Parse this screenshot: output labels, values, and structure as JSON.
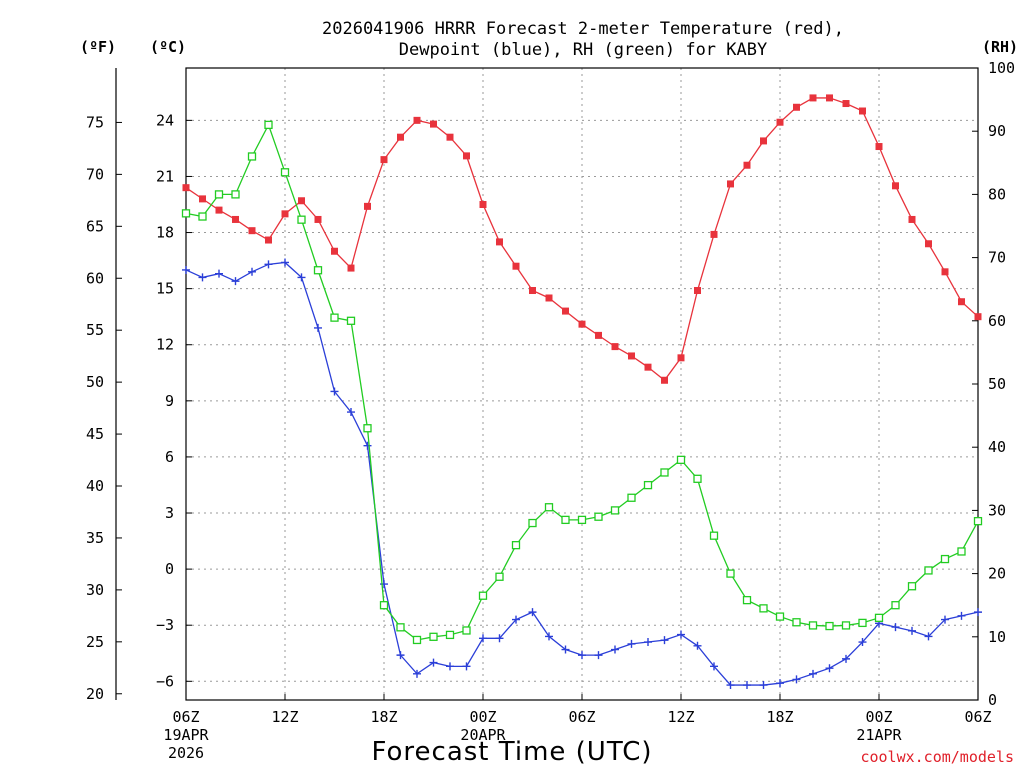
{
  "chart_data": {
    "type": "line",
    "title_line1": "2026041906 HRRR Forecast 2-meter Temperature (red),",
    "title_line2": "Dewpoint (blue), RH (green) for KABY",
    "xlabel": "Forecast Time (UTC)",
    "credit": "coolwx.com/models",
    "unit_f": "(ºF)",
    "unit_c": "(ºC)",
    "unit_rh": "(RH)",
    "x": [
      0,
      1,
      2,
      3,
      4,
      5,
      6,
      7,
      8,
      9,
      10,
      11,
      12,
      13,
      14,
      15,
      16,
      17,
      18,
      19,
      20,
      21,
      22,
      23,
      24,
      25,
      26,
      27,
      28,
      29,
      30,
      31,
      32,
      33,
      34,
      35,
      36,
      37,
      38,
      39,
      40,
      41,
      42,
      43,
      44,
      45,
      46,
      47,
      48
    ],
    "xlim": [
      0,
      48
    ],
    "x_ticks": [
      {
        "x": 0,
        "label": "06Z",
        "sub1": "19APR",
        "sub2": "2026"
      },
      {
        "x": 6,
        "label": "12Z",
        "sub1": "",
        "sub2": ""
      },
      {
        "x": 12,
        "label": "18Z",
        "sub1": "",
        "sub2": ""
      },
      {
        "x": 18,
        "label": "00Z",
        "sub1": "20APR",
        "sub2": ""
      },
      {
        "x": 24,
        "label": "06Z",
        "sub1": "",
        "sub2": ""
      },
      {
        "x": 30,
        "label": "12Z",
        "sub1": "",
        "sub2": ""
      },
      {
        "x": 36,
        "label": "18Z",
        "sub1": "",
        "sub2": ""
      },
      {
        "x": 42,
        "label": "00Z",
        "sub1": "21APR",
        "sub2": ""
      },
      {
        "x": 48,
        "label": "06Z",
        "sub1": "",
        "sub2": ""
      }
    ],
    "c_axis": {
      "lim": [
        -7.0,
        26.8
      ],
      "ticks": [
        -6,
        -3,
        0,
        3,
        6,
        9,
        12,
        15,
        18,
        21,
        24
      ],
      "labels": [
        "−6",
        "−3",
        "0",
        "3",
        "6",
        "9",
        "12",
        "15",
        "18",
        "21",
        "24"
      ]
    },
    "f_ticks": {
      "values": [
        20,
        25,
        30,
        35,
        40,
        45,
        50,
        55,
        60,
        65,
        70,
        75
      ],
      "labels": [
        "20",
        "25",
        "30",
        "35",
        "40",
        "45",
        "50",
        "55",
        "60",
        "65",
        "70",
        "75"
      ]
    },
    "rh_axis": {
      "lim": [
        0,
        100
      ],
      "ticks": [
        0,
        10,
        20,
        30,
        40,
        50,
        60,
        70,
        80,
        90,
        100
      ],
      "labels": [
        "0",
        "10",
        "20",
        "30",
        "40",
        "50",
        "60",
        "70",
        "80",
        "90",
        "100"
      ]
    },
    "series": [
      {
        "name": "Temperature",
        "unit": "C",
        "axis": "c",
        "color": "#e8333c",
        "marker": "filled-square",
        "values": [
          20.4,
          19.8,
          19.2,
          18.7,
          18.1,
          17.6,
          19.0,
          19.7,
          18.7,
          17.0,
          16.1,
          19.4,
          21.9,
          23.1,
          24.0,
          23.8,
          23.1,
          22.1,
          19.5,
          17.5,
          16.2,
          14.9,
          14.5,
          13.8,
          13.1,
          12.5,
          11.9,
          11.4,
          10.8,
          10.1,
          11.3,
          14.9,
          17.9,
          20.6,
          21.6,
          22.9,
          23.9,
          24.7,
          25.2,
          25.2,
          24.9,
          24.5,
          22.6,
          20.5,
          18.7,
          17.4,
          15.9,
          14.3,
          13.5
        ]
      },
      {
        "name": "Dewpoint",
        "unit": "C",
        "axis": "c",
        "color": "#2b3fd8",
        "marker": "plus",
        "values": [
          16.0,
          15.6,
          15.8,
          15.4,
          15.9,
          16.3,
          16.4,
          15.6,
          12.9,
          9.5,
          8.4,
          6.6,
          -0.8,
          -4.6,
          -5.6,
          -5.0,
          -5.2,
          -5.2,
          -3.7,
          -3.7,
          -2.7,
          -2.3,
          -3.6,
          -4.3,
          -4.6,
          -4.6,
          -4.3,
          -4.0,
          -3.9,
          -3.8,
          -3.5,
          -4.1,
          -5.2,
          -6.2,
          -6.2,
          -6.2,
          -6.1,
          -5.9,
          -5.6,
          -5.3,
          -4.8,
          -3.9,
          -2.9,
          -3.1,
          -3.3,
          -3.6,
          -2.7,
          -2.5,
          -2.3
        ]
      },
      {
        "name": "RH",
        "unit": "%",
        "axis": "rh",
        "color": "#22cc22",
        "marker": "open-square",
        "values": [
          77,
          76.5,
          80,
          80,
          86,
          91,
          83.5,
          76,
          68,
          60.5,
          60,
          43,
          15,
          11.5,
          9.5,
          10,
          10.3,
          11,
          16.5,
          19.5,
          24.5,
          28,
          30.5,
          28.5,
          28.5,
          29,
          30,
          32,
          34,
          36,
          38,
          35,
          26,
          20,
          15.8,
          14.5,
          13.2,
          12.3,
          11.8,
          11.7,
          11.8,
          12.2,
          13,
          15,
          18,
          20.5,
          22.3,
          23.5,
          28.3
        ]
      }
    ]
  }
}
